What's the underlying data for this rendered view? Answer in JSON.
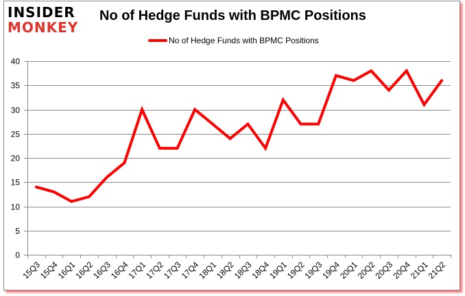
{
  "branding": {
    "logo_line1": "INSIDER",
    "logo_line2": "MONKEY",
    "logo_colors": {
      "line1": "#000000",
      "line2": "#e0332c"
    }
  },
  "chart_data": {
    "type": "line",
    "title": "No of Hedge Funds with BPMC Positions",
    "xlabel": "",
    "ylabel": "",
    "categories": [
      "15Q3",
      "15Q4",
      "16Q1",
      "16Q2",
      "16Q3",
      "16Q4",
      "17Q1",
      "17Q2",
      "17Q3",
      "17Q4",
      "18Q1",
      "18Q2",
      "18Q3",
      "18Q4",
      "19Q1",
      "19Q2",
      "19Q3",
      "19Q4",
      "20Q1",
      "20Q2",
      "20Q3",
      "20Q4",
      "21Q1",
      "21Q2"
    ],
    "series": [
      {
        "name": "No of Hedge Funds with BPMC Positions",
        "color": "#ff0000",
        "values": [
          14,
          13,
          11,
          12,
          16,
          19,
          30,
          22,
          22,
          30,
          27,
          24,
          27,
          22,
          32,
          27,
          27,
          37,
          36,
          38,
          34,
          38,
          31,
          36
        ]
      }
    ],
    "ylim": [
      0,
      40
    ],
    "yticks": [
      0,
      5,
      10,
      15,
      20,
      25,
      30,
      35,
      40
    ],
    "grid": true,
    "legend_position": "top"
  }
}
